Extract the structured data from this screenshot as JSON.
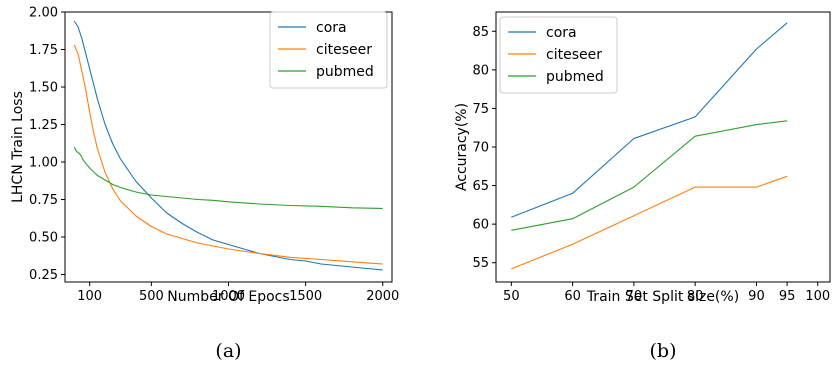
{
  "chart_data": [
    {
      "type": "line",
      "caption": "(a)",
      "xlabel": "Number Of Epocs",
      "ylabel": "LHCN Train Loss",
      "xlim": [
        -60,
        2060
      ],
      "ylim": [
        0.2,
        2.0
      ],
      "xticks": [
        100,
        500,
        1000,
        1500,
        2000
      ],
      "xtick_labels": [
        "100",
        "500",
        "1000",
        "1500",
        "2000"
      ],
      "yticks": [
        0.25,
        0.5,
        0.75,
        1.0,
        1.25,
        1.5,
        1.75,
        2.0
      ],
      "ytick_labels": [
        "0.25",
        "0.50",
        "0.75",
        "1.00",
        "1.25",
        "1.50",
        "1.75",
        "2.00"
      ],
      "legend_position": "top-right",
      "series": [
        {
          "name": "cora",
          "color": "#1f77b4",
          "x": [
            0,
            25,
            50,
            100,
            150,
            200,
            250,
            300,
            400,
            500,
            600,
            700,
            800,
            900,
            1000,
            1100,
            1200,
            1300,
            1400,
            1500,
            1600,
            1700,
            1800,
            1900,
            2000
          ],
          "y": [
            1.94,
            1.9,
            1.82,
            1.62,
            1.42,
            1.25,
            1.12,
            1.02,
            0.87,
            0.76,
            0.66,
            0.59,
            0.53,
            0.48,
            0.45,
            0.42,
            0.39,
            0.37,
            0.35,
            0.34,
            0.32,
            0.31,
            0.3,
            0.29,
            0.28
          ]
        },
        {
          "name": "citeseer",
          "color": "#ff7f0e",
          "x": [
            0,
            25,
            50,
            75,
            100,
            125,
            150,
            200,
            250,
            300,
            400,
            500,
            600,
            700,
            800,
            900,
            1000,
            1200,
            1400,
            1600,
            1800,
            2000
          ],
          "y": [
            1.78,
            1.72,
            1.6,
            1.48,
            1.33,
            1.2,
            1.09,
            0.93,
            0.82,
            0.74,
            0.64,
            0.57,
            0.52,
            0.49,
            0.46,
            0.44,
            0.42,
            0.39,
            0.365,
            0.35,
            0.335,
            0.32
          ]
        },
        {
          "name": "pubmed",
          "color": "#2ca02c",
          "x": [
            0,
            15,
            30,
            45,
            60,
            80,
            100,
            150,
            200,
            250,
            300,
            400,
            500,
            600,
            700,
            800,
            900,
            1000,
            1200,
            1400,
            1600,
            1800,
            2000
          ],
          "y": [
            1.1,
            1.07,
            1.06,
            1.04,
            1.01,
            0.985,
            0.96,
            0.91,
            0.88,
            0.85,
            0.83,
            0.8,
            0.78,
            0.77,
            0.76,
            0.75,
            0.745,
            0.735,
            0.72,
            0.71,
            0.705,
            0.695,
            0.69
          ]
        }
      ]
    },
    {
      "type": "line",
      "caption": "(b)",
      "xlabel": "Train Set Split size(%)",
      "ylabel": "Accuracy(%)",
      "xlim": [
        47.5,
        102
      ],
      "ylim": [
        52.5,
        87.5
      ],
      "xticks": [
        50,
        60,
        70,
        80,
        90,
        95,
        100
      ],
      "xtick_labels": [
        "50",
        "60",
        "70",
        "80",
        "90",
        "95",
        "100"
      ],
      "yticks": [
        55,
        60,
        65,
        70,
        75,
        80,
        85
      ],
      "ytick_labels": [
        "55",
        "60",
        "65",
        "70",
        "75",
        "80",
        "85"
      ],
      "legend_position": "top-left",
      "series": [
        {
          "name": "cora",
          "color": "#1f77b4",
          "x": [
            50,
            60,
            70,
            80,
            90,
            95
          ],
          "y": [
            60.9,
            64.0,
            71.1,
            73.9,
            82.7,
            86.1
          ]
        },
        {
          "name": "citeseer",
          "color": "#ff7f0e",
          "x": [
            50,
            60,
            70,
            80,
            90,
            95
          ],
          "y": [
            54.2,
            57.4,
            61.1,
            64.8,
            64.8,
            66.2
          ]
        },
        {
          "name": "pubmed",
          "color": "#2ca02c",
          "x": [
            50,
            60,
            70,
            80,
            90,
            95
          ],
          "y": [
            59.2,
            60.7,
            64.8,
            71.4,
            72.9,
            73.4
          ]
        }
      ]
    }
  ]
}
